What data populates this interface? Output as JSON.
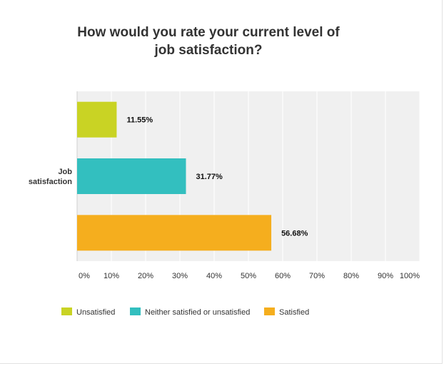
{
  "chart_data": {
    "type": "bar",
    "orientation": "horizontal",
    "title_lines": [
      "How would you rate your current level of",
      "job satisfaction?"
    ],
    "categories": [
      "Job satisfaction"
    ],
    "category_label_lines": [
      "Job",
      "satisfaction"
    ],
    "series": [
      {
        "name": "Unsatisfied",
        "values": [
          11.55
        ],
        "label": "11.55%",
        "color": "#c9d324"
      },
      {
        "name": "Neither satisfied or unsatisfied",
        "values": [
          31.77
        ],
        "label": "31.77%",
        "color": "#33bfbf"
      },
      {
        "name": "Satisfied",
        "values": [
          56.68
        ],
        "label": "56.68%",
        "color": "#f5ae1e"
      }
    ],
    "x_ticks": [
      "0%",
      "10%",
      "20%",
      "30%",
      "40%",
      "50%",
      "60%",
      "70%",
      "80%",
      "90%",
      "100%"
    ],
    "xlim": [
      0,
      100
    ],
    "grid": true,
    "legend_position": "bottom-left",
    "plot_background": "#f0f0f0",
    "grid_color": "#ffffff"
  }
}
